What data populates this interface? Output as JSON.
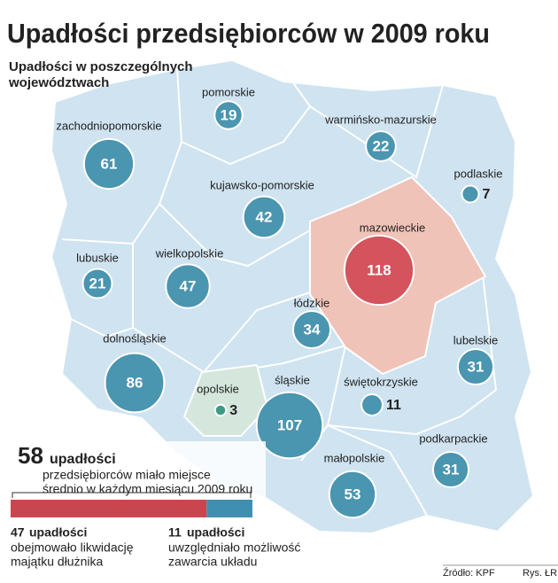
{
  "title": "Upadłości przedsiębiorców w 2009 roku",
  "subtitle": [
    "Upadłości  w poszczególnych",
    "województwach"
  ],
  "regions": [
    {
      "name": "pomorskie",
      "value": 19,
      "color": "#4a95b0"
    },
    {
      "name": "zachodniopomorskie",
      "value": 61,
      "color": "#4a95b0"
    },
    {
      "name": "warmińsko-mazurskie",
      "value": 22,
      "color": "#4a95b0"
    },
    {
      "name": "podlaskie",
      "value": 7,
      "color": "#4a95b0"
    },
    {
      "name": "kujawsko-pomorskie",
      "value": 42,
      "color": "#4a95b0"
    },
    {
      "name": "mazowieckie",
      "value": 118,
      "color": "#d4535d"
    },
    {
      "name": "lubuskie",
      "value": 21,
      "color": "#4a95b0"
    },
    {
      "name": "wielkopolskie",
      "value": 47,
      "color": "#4a95b0"
    },
    {
      "name": "łódzkie",
      "value": 34,
      "color": "#4a95b0"
    },
    {
      "name": "lubelskie",
      "value": 31,
      "color": "#4a95b0"
    },
    {
      "name": "dolnośląskie",
      "value": 86,
      "color": "#4a95b0"
    },
    {
      "name": "opolskie",
      "value": 3,
      "color": "#3f9a83"
    },
    {
      "name": "śląskie",
      "value": 107,
      "color": "#4a95b0"
    },
    {
      "name": "świętokrzyskie",
      "value": 11,
      "color": "#4a95b0"
    },
    {
      "name": "podkarpackie",
      "value": 31,
      "color": "#4a95b0"
    },
    {
      "name": "małopolskie",
      "value": 53,
      "color": "#4a95b0"
    }
  ],
  "summary": {
    "total": 58,
    "unit": "upadłości",
    "text": [
      "przedsiębiorców miało miejsce",
      "średnio w każdym miesiącu 2009 roku"
    ],
    "parts": [
      {
        "value": 47,
        "unit": "upadłości",
        "text": [
          "obejmowało likwidację",
          "majątku dłużnika"
        ],
        "color": "#c9464f"
      },
      {
        "value": 11,
        "unit": "upadłości",
        "text": [
          "uwzględniało możliwość",
          "zawarcia układu"
        ],
        "color": "#3f8fb0"
      }
    ]
  },
  "source": "Źródło: KPF",
  "credit": "Rys. ŁR"
}
